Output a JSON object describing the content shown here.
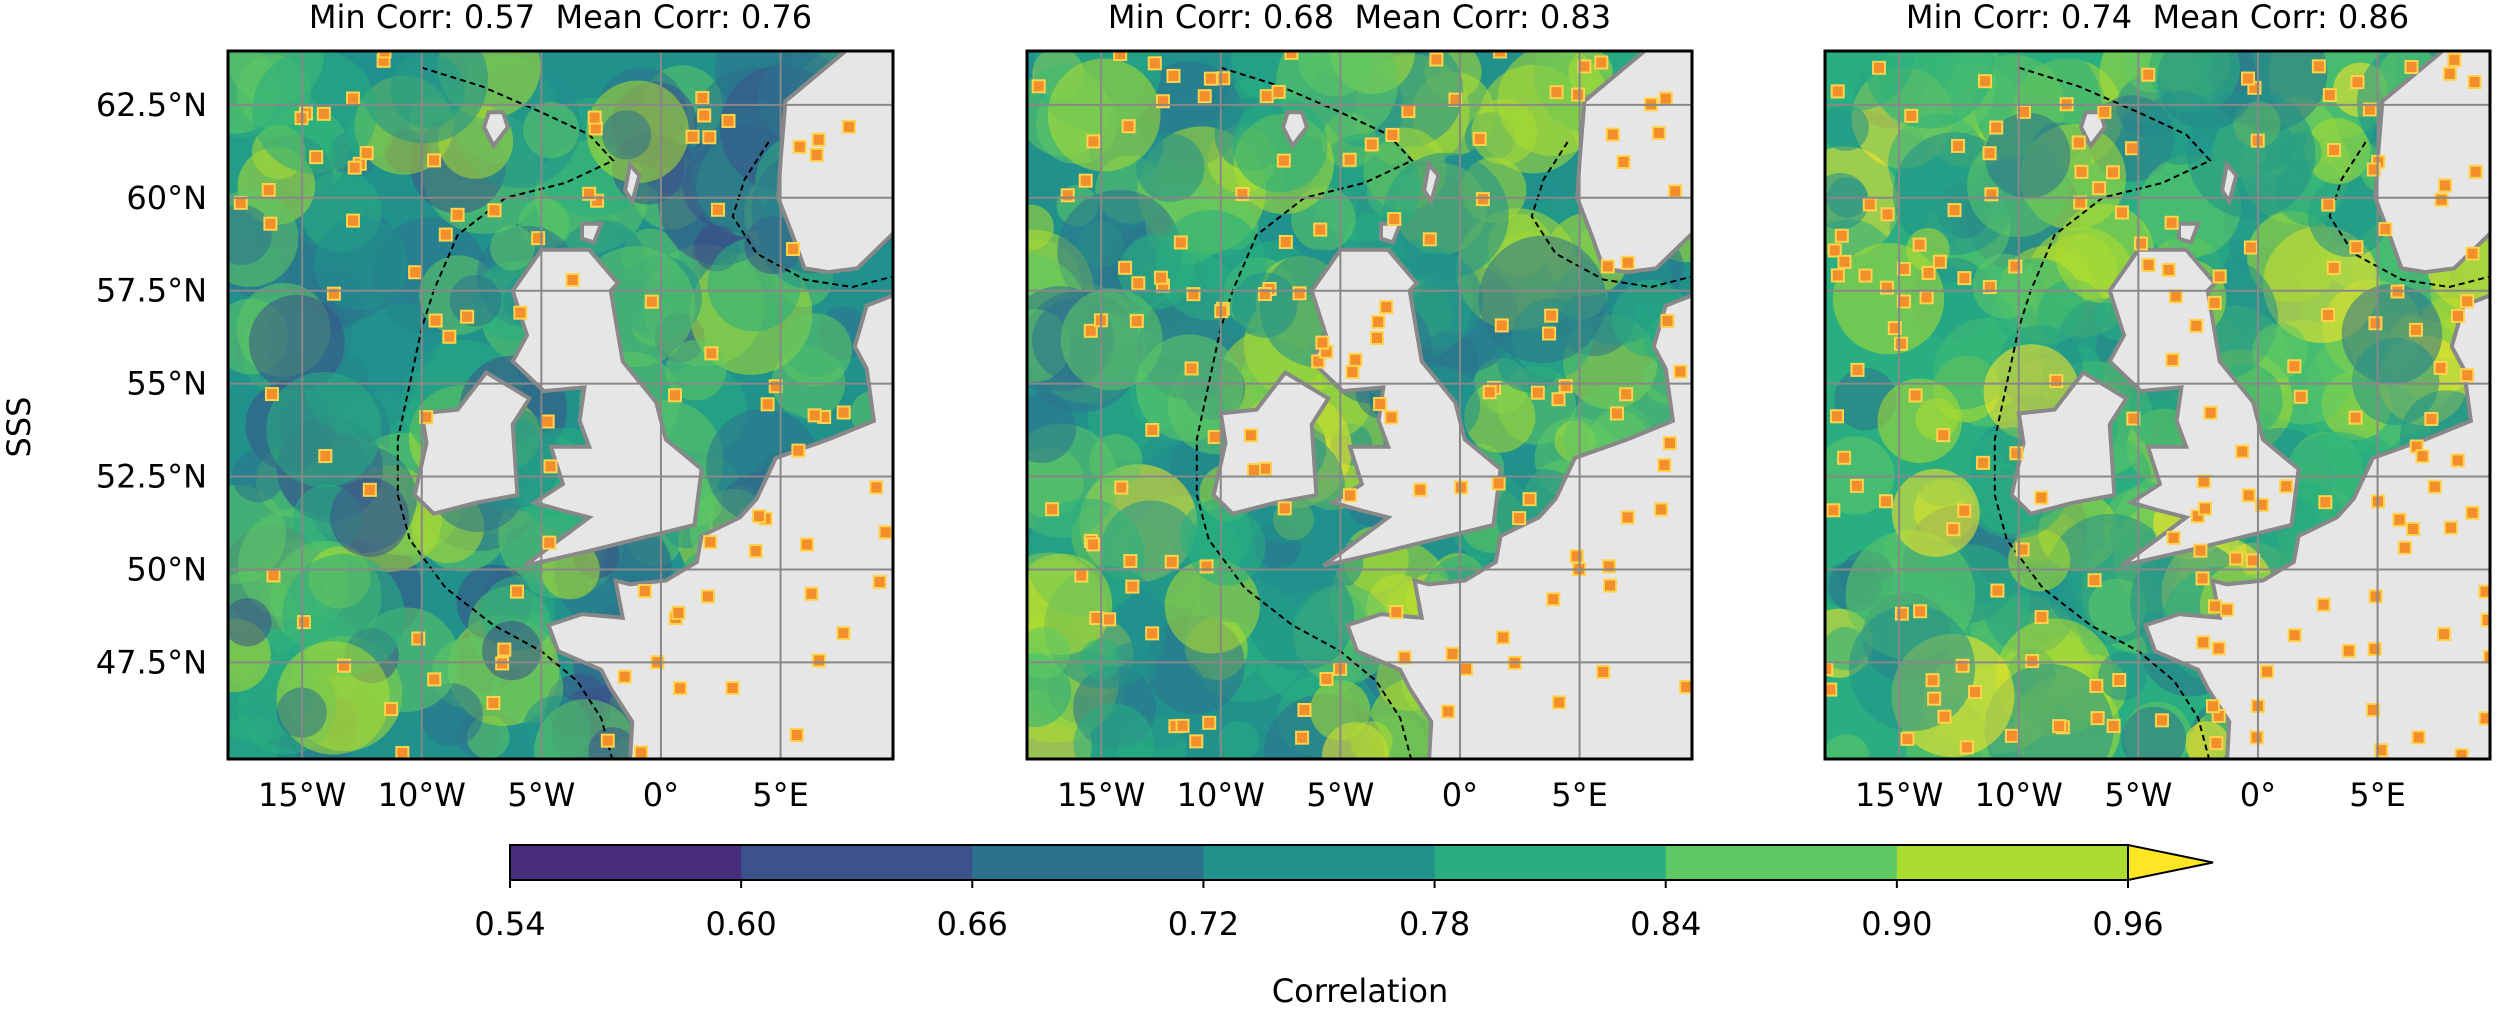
{
  "panels": [
    {
      "title": "Min Corr: 0.57  Mean Corr: 0.76"
    },
    {
      "title": "Min Corr: 0.68  Mean Corr: 0.83"
    },
    {
      "title": "Min Corr: 0.74  Mean Corr: 0.86"
    }
  ],
  "y_label": "SSS",
  "lat_ticks": [
    {
      "value": 62.5,
      "label": "62.5°N"
    },
    {
      "value": 60,
      "label": "60°N"
    },
    {
      "value": 57.5,
      "label": "57.5°N"
    },
    {
      "value": 55,
      "label": "55°N"
    },
    {
      "value": 52.5,
      "label": "52.5°N"
    },
    {
      "value": 50,
      "label": "50°N"
    },
    {
      "value": 47.5,
      "label": "47.5°N"
    }
  ],
  "lon_ticks": [
    {
      "value": -15,
      "label": "15°W"
    },
    {
      "value": -10,
      "label": "10°W"
    },
    {
      "value": -5,
      "label": "5°W"
    },
    {
      "value": 0,
      "label": "0°"
    },
    {
      "value": 5,
      "label": "5°E"
    }
  ],
  "colorbar": {
    "label": "Correlation",
    "ticks": [
      0.54,
      {
        "value": 0.6,
        "label": "0.60"
      },
      0.66,
      0.72,
      0.78,
      0.84,
      {
        "value": 0.9,
        "label": "0.90"
      },
      0.96
    ],
    "colors": [
      "#472d7b",
      "#3b528b",
      "#2c728e",
      "#21918c",
      "#28ae80",
      "#5ec962",
      "#addc30",
      "#fde725"
    ],
    "extend": "max"
  }
}
